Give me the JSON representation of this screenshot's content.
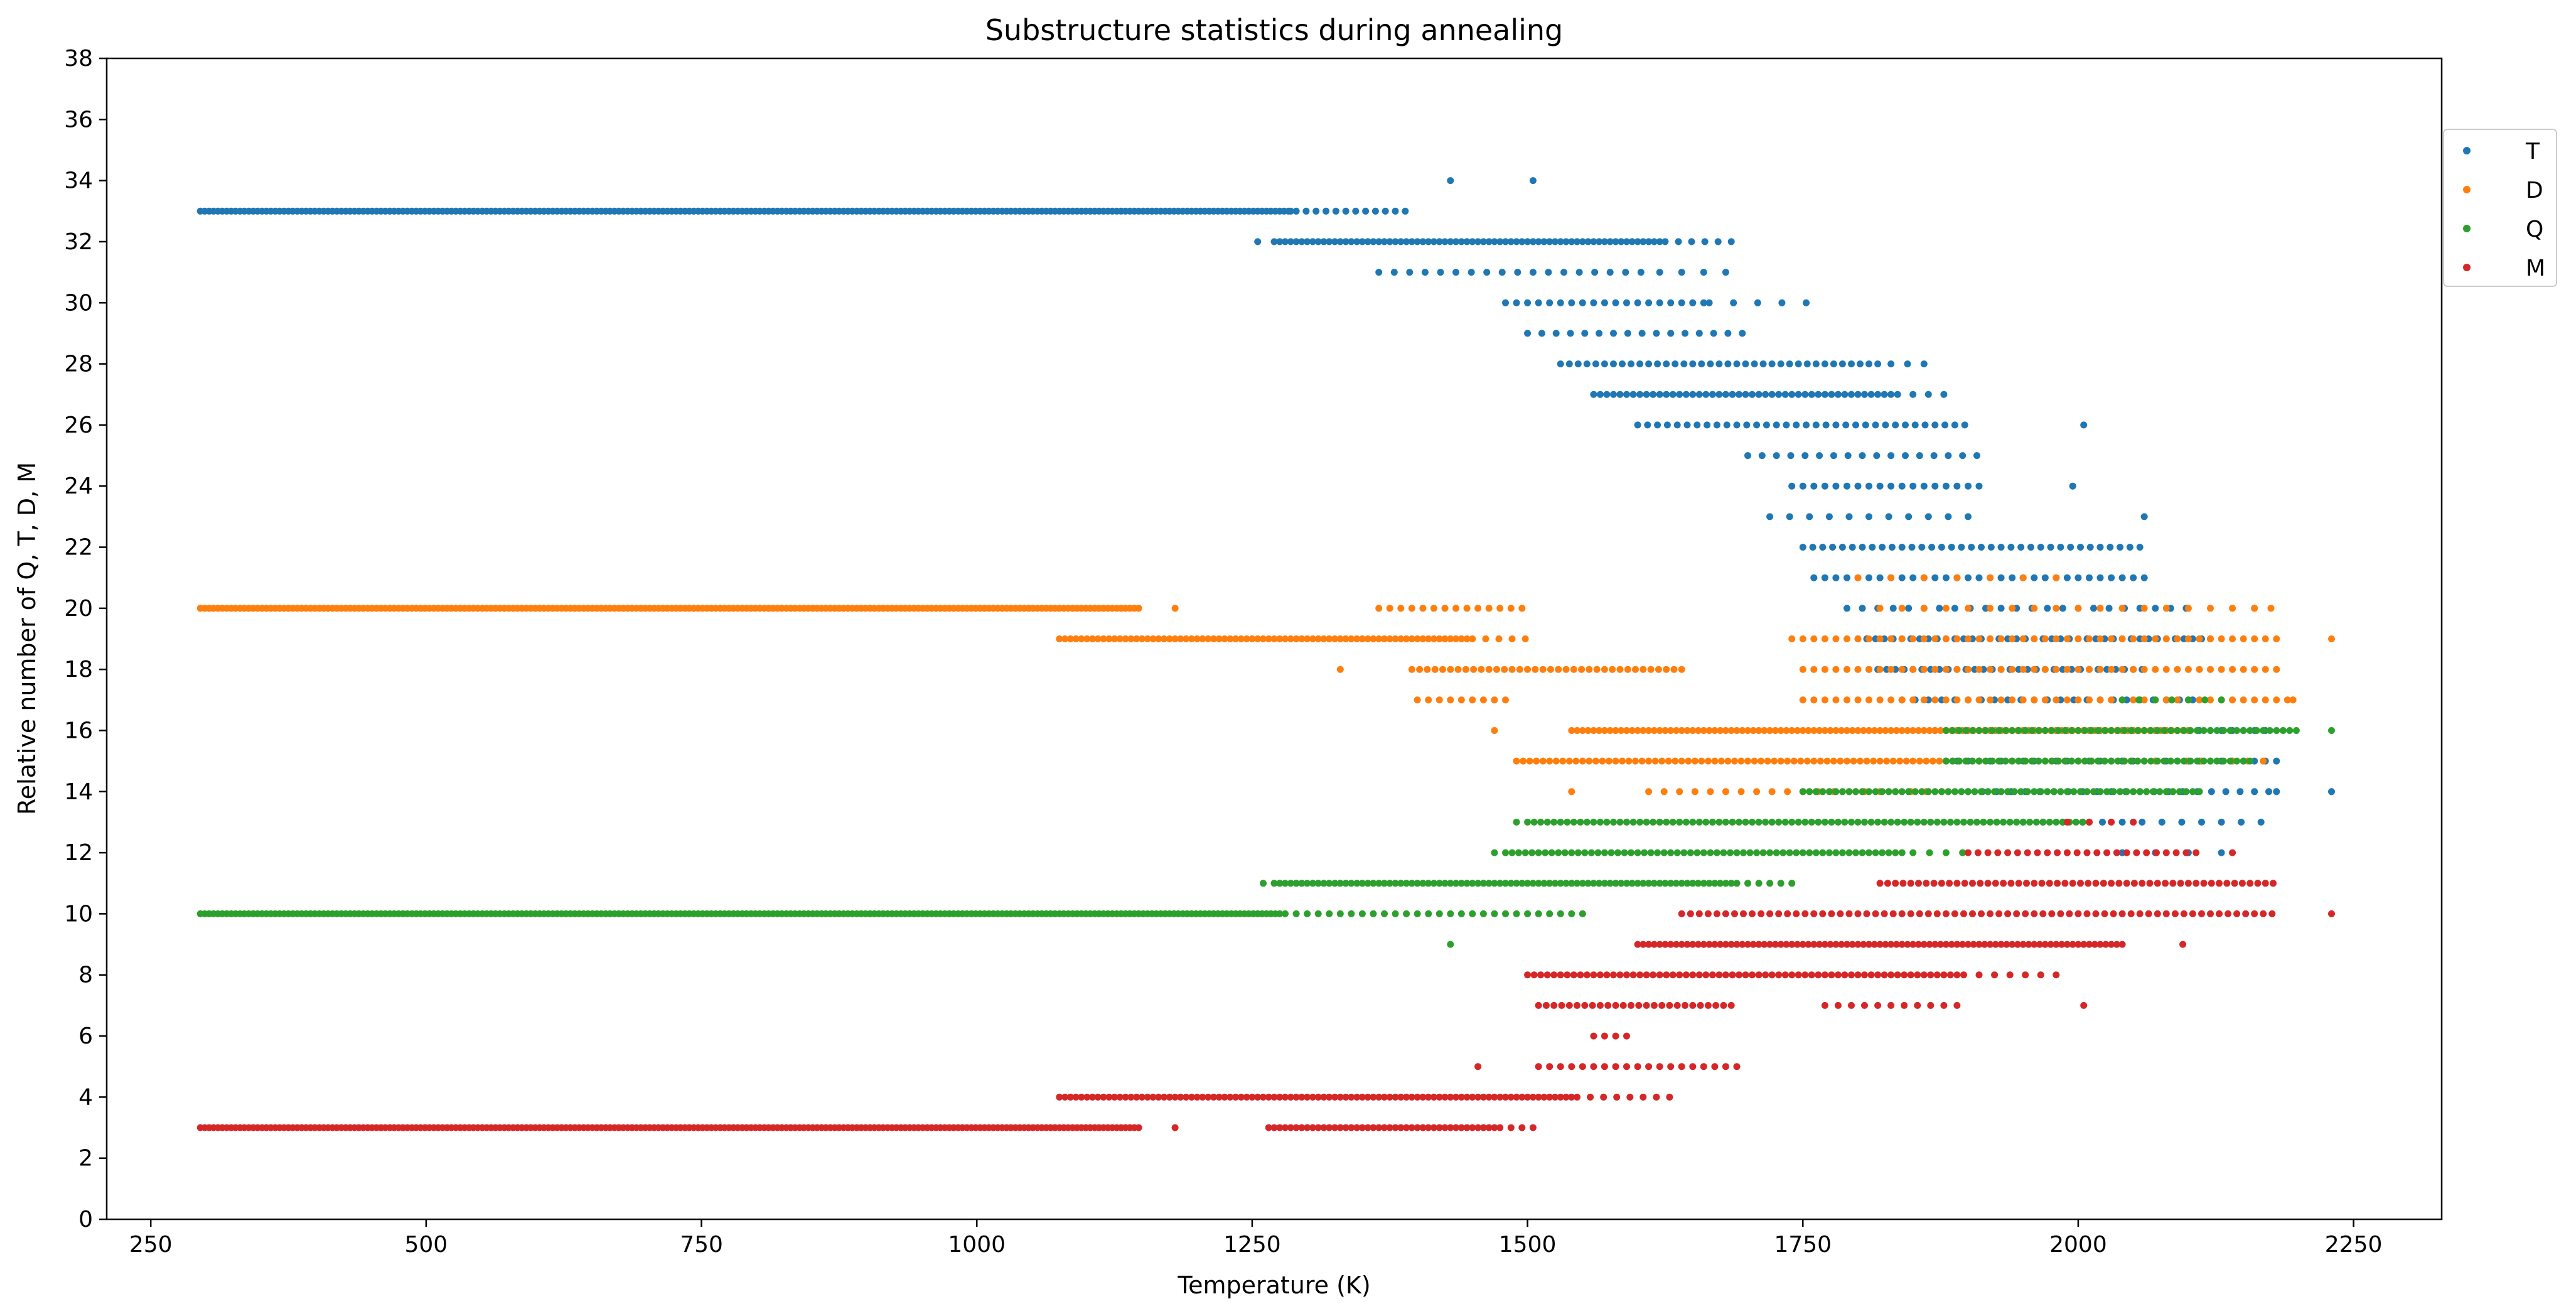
{
  "chart_data": {
    "type": "scatter",
    "title": "Substructure statistics during annealing",
    "xlabel": "Temperature (K)",
    "ylabel": "Relative number of Q, T, D, M",
    "xlim": [
      210,
      2330
    ],
    "ylim": [
      0,
      38
    ],
    "xticks": [
      250,
      500,
      750,
      1000,
      1250,
      1500,
      1750,
      2000,
      2250
    ],
    "yticks": [
      0,
      2,
      4,
      6,
      8,
      10,
      12,
      14,
      16,
      18,
      20,
      22,
      24,
      26,
      28,
      30,
      32,
      34,
      36,
      38
    ],
    "grid": false,
    "legend_position": "top-right-outside",
    "series": [
      {
        "name": "T",
        "color": "#1f77b4",
        "segments": [
          {
            "y": 33,
            "x0": 295,
            "x1": 1285,
            "step": 4
          },
          {
            "y": 33,
            "x0": 1290,
            "x1": 1390,
            "step": 9
          },
          {
            "y": 32,
            "x0": 1270,
            "x1": 1620,
            "step": 5
          },
          {
            "y": 32,
            "x0": 1625,
            "x1": 1690,
            "step": 12
          },
          {
            "y": 31,
            "x0": 1365,
            "x1": 1610,
            "step": 14
          },
          {
            "y": 31,
            "x0": 1620,
            "x1": 1690,
            "step": 20
          },
          {
            "y": 30,
            "x0": 1480,
            "x1": 1660,
            "step": 10
          },
          {
            "y": 30,
            "x0": 1665,
            "x1": 1760,
            "step": 22
          },
          {
            "y": 29,
            "x0": 1500,
            "x1": 1700,
            "step": 13
          },
          {
            "y": 28,
            "x0": 1530,
            "x1": 1820,
            "step": 8
          },
          {
            "y": 28,
            "x0": 1830,
            "x1": 1860,
            "step": 15
          },
          {
            "y": 27,
            "x0": 1560,
            "x1": 1840,
            "step": 6
          },
          {
            "y": 27,
            "x0": 1850,
            "x1": 1880,
            "step": 14
          },
          {
            "y": 26,
            "x0": 1600,
            "x1": 1900,
            "step": 9
          },
          {
            "y": 25,
            "x0": 1700,
            "x1": 1910,
            "step": 13
          },
          {
            "y": 24,
            "x0": 1740,
            "x1": 1910,
            "step": 10
          },
          {
            "y": 23,
            "x0": 1720,
            "x1": 1900,
            "step": 18
          },
          {
            "y": 22,
            "x0": 1750,
            "x1": 2060,
            "step": 9
          },
          {
            "y": 21,
            "x0": 1760,
            "x1": 2060,
            "step": 10
          },
          {
            "y": 20,
            "x0": 1790,
            "x1": 2100,
            "step": 14
          },
          {
            "y": 19,
            "x0": 1800,
            "x1": 2120,
            "step": 8
          },
          {
            "y": 18,
            "x0": 1810,
            "x1": 2060,
            "step": 8
          },
          {
            "y": 17,
            "x0": 1840,
            "x1": 2110,
            "step": 12
          },
          {
            "y": 16,
            "x0": 1870,
            "x1": 2170,
            "step": 10
          },
          {
            "y": 15,
            "x0": 1880,
            "x1": 2180,
            "step": 10
          },
          {
            "y": 14,
            "x0": 1900,
            "x1": 2180,
            "step": 13
          },
          {
            "y": 13,
            "x0": 1950,
            "x1": 2170,
            "step": 18
          },
          {
            "y": 12,
            "x0": 2040,
            "x1": 2140,
            "step": 30
          }
        ],
        "points": [
          [
            1430,
            34
          ],
          [
            1505,
            34
          ],
          [
            2005,
            26
          ],
          [
            1995,
            24
          ],
          [
            2060,
            23
          ],
          [
            2230,
            14
          ],
          [
            2180,
            14
          ],
          [
            1255,
            32
          ],
          [
            1285,
            33
          ]
        ]
      },
      {
        "name": "D",
        "color": "#ff7f0e",
        "segments": [
          {
            "y": 20,
            "x0": 295,
            "x1": 1150,
            "step": 4
          },
          {
            "y": 20,
            "x0": 1365,
            "x1": 1500,
            "step": 10
          },
          {
            "y": 19,
            "x0": 1075,
            "x1": 1445,
            "step": 5
          },
          {
            "y": 19,
            "x0": 1450,
            "x1": 1500,
            "step": 12
          },
          {
            "y": 18,
            "x0": 1395,
            "x1": 1640,
            "step": 7
          },
          {
            "y": 17,
            "x0": 1400,
            "x1": 1480,
            "step": 10
          },
          {
            "y": 16,
            "x0": 1540,
            "x1": 2100,
            "step": 5
          },
          {
            "y": 15,
            "x0": 1490,
            "x1": 2060,
            "step": 6
          },
          {
            "y": 15,
            "x0": 2070,
            "x1": 2180,
            "step": 14
          },
          {
            "y": 14,
            "x0": 1610,
            "x1": 1880,
            "step": 14
          },
          {
            "y": 17,
            "x0": 1750,
            "x1": 2190,
            "step": 10
          },
          {
            "y": 18,
            "x0": 1750,
            "x1": 2180,
            "step": 10
          },
          {
            "y": 19,
            "x0": 1740,
            "x1": 2180,
            "step": 10
          },
          {
            "y": 20,
            "x0": 1820,
            "x1": 2170,
            "step": 20
          },
          {
            "y": 21,
            "x0": 1800,
            "x1": 2000,
            "step": 30
          }
        ],
        "points": [
          [
            1180,
            20
          ],
          [
            1330,
            18
          ],
          [
            2230,
            19
          ],
          [
            2195,
            17
          ],
          [
            1470,
            16
          ],
          [
            1540,
            14
          ],
          [
            2120,
            19
          ],
          [
            2160,
            20
          ],
          [
            2175,
            20
          ]
        ]
      },
      {
        "name": "Q",
        "color": "#2ca02c",
        "segments": [
          {
            "y": 10,
            "x0": 295,
            "x1": 1275,
            "step": 4
          },
          {
            "y": 10,
            "x0": 1280,
            "x1": 1550,
            "step": 10
          },
          {
            "y": 11,
            "x0": 1270,
            "x1": 1690,
            "step": 5
          },
          {
            "y": 11,
            "x0": 1700,
            "x1": 1740,
            "step": 10
          },
          {
            "y": 12,
            "x0": 1480,
            "x1": 1840,
            "step": 6
          },
          {
            "y": 12,
            "x0": 1850,
            "x1": 1900,
            "step": 15
          },
          {
            "y": 13,
            "x0": 1500,
            "x1": 2010,
            "step": 6
          },
          {
            "y": 14,
            "x0": 1750,
            "x1": 2110,
            "step": 6
          },
          {
            "y": 15,
            "x0": 1880,
            "x1": 2160,
            "step": 6
          },
          {
            "y": 16,
            "x0": 1880,
            "x1": 2200,
            "step": 6
          },
          {
            "y": 17,
            "x0": 2040,
            "x1": 2130,
            "step": 15
          }
        ],
        "points": [
          [
            1430,
            9
          ],
          [
            2230,
            16
          ],
          [
            1260,
            11
          ],
          [
            1470,
            12
          ],
          [
            1490,
            13
          ]
        ]
      },
      {
        "name": "M",
        "color": "#d62728",
        "segments": [
          {
            "y": 3,
            "x0": 295,
            "x1": 1150,
            "step": 4
          },
          {
            "y": 3,
            "x0": 1265,
            "x1": 1470,
            "step": 5
          },
          {
            "y": 3,
            "x0": 1475,
            "x1": 1505,
            "step": 10
          },
          {
            "y": 4,
            "x0": 1075,
            "x1": 1540,
            "step": 5
          },
          {
            "y": 4,
            "x0": 1545,
            "x1": 1640,
            "step": 12
          },
          {
            "y": 5,
            "x0": 1510,
            "x1": 1690,
            "step": 10
          },
          {
            "y": 6,
            "x0": 1560,
            "x1": 1590,
            "step": 10
          },
          {
            "y": 7,
            "x0": 1510,
            "x1": 1690,
            "step": 7
          },
          {
            "y": 7,
            "x0": 1770,
            "x1": 1890,
            "step": 12
          },
          {
            "y": 8,
            "x0": 1500,
            "x1": 1900,
            "step": 6
          },
          {
            "y": 8,
            "x0": 1910,
            "x1": 1980,
            "step": 14
          },
          {
            "y": 9,
            "x0": 1600,
            "x1": 2040,
            "step": 5
          },
          {
            "y": 10,
            "x0": 1640,
            "x1": 2180,
            "step": 8
          },
          {
            "y": 11,
            "x0": 1820,
            "x1": 2180,
            "step": 7
          },
          {
            "y": 12,
            "x0": 1900,
            "x1": 2110,
            "step": 9
          },
          {
            "y": 13,
            "x0": 1990,
            "x1": 2060,
            "step": 20
          }
        ],
        "points": [
          [
            1180,
            3
          ],
          [
            1455,
            5
          ],
          [
            2005,
            7
          ],
          [
            2095,
            9
          ],
          [
            2230,
            10
          ],
          [
            2140,
            12
          ]
        ]
      }
    ]
  }
}
